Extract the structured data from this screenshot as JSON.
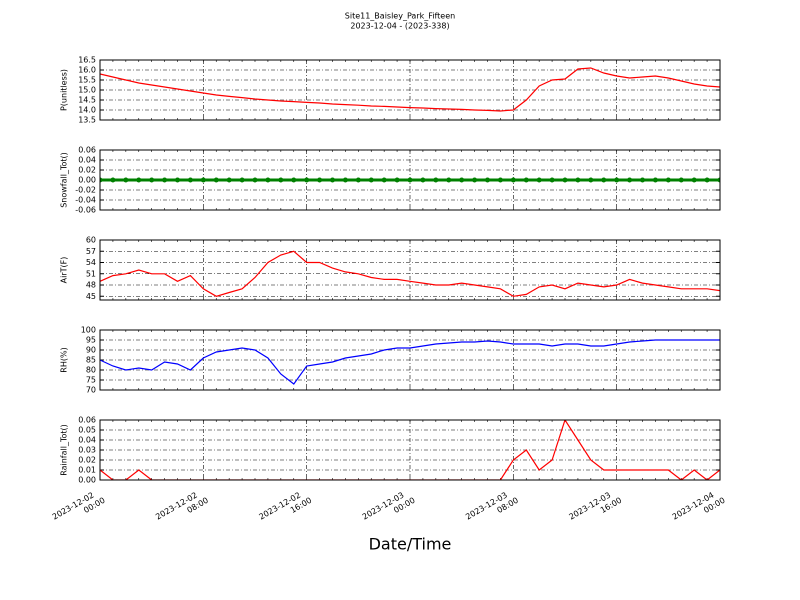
{
  "title": "Site11_Baisley_Park_Fifteen",
  "subtitle": "2023-12-04 - (2023-338)",
  "xlabel": "Date/Time",
  "chart_data": [
    {
      "type": "line",
      "ylabel": "P(unitless)",
      "color": "#ff0000",
      "grid": true,
      "xlim": [
        "2023-12-02 00:00",
        "2023-12-04 00:00"
      ],
      "xticks": [
        "2023-12-02 00:00",
        "2023-12-02 08:00",
        "2023-12-02 16:00",
        "2023-12-03 00:00",
        "2023-12-03 08:00",
        "2023-12-03 16:00",
        "2023-12-04 00:00"
      ],
      "ylim": [
        13.5,
        16.5
      ],
      "yticks": [
        13.5,
        {
          "value": 14,
          "label": "14.0"
        },
        14.5,
        {
          "value": 15,
          "label": "15.0"
        },
        15.5,
        {
          "value": 16,
          "label": "16.0"
        },
        16.5
      ],
      "x": [
        "2023-12-02 00:00",
        "2023-12-02 01:00",
        "2023-12-02 02:00",
        "2023-12-02 03:00",
        "2023-12-02 04:00",
        "2023-12-02 05:00",
        "2023-12-02 06:00",
        "2023-12-02 07:00",
        "2023-12-02 08:00",
        "2023-12-02 09:00",
        "2023-12-02 10:00",
        "2023-12-02 11:00",
        "2023-12-02 12:00",
        "2023-12-02 13:00",
        "2023-12-02 14:00",
        "2023-12-02 15:00",
        "2023-12-02 16:00",
        "2023-12-02 17:00",
        "2023-12-02 18:00",
        "2023-12-02 19:00",
        "2023-12-02 20:00",
        "2023-12-02 21:00",
        "2023-12-02 22:00",
        "2023-12-02 23:00",
        "2023-12-03 00:00",
        "2023-12-03 01:00",
        "2023-12-03 02:00",
        "2023-12-03 03:00",
        "2023-12-03 04:00",
        "2023-12-03 05:00",
        "2023-12-03 06:00",
        "2023-12-03 07:00",
        "2023-12-03 08:00",
        "2023-12-03 09:00",
        "2023-12-03 10:00",
        "2023-12-03 11:00",
        "2023-12-03 12:00",
        "2023-12-03 13:00",
        "2023-12-03 14:00",
        "2023-12-03 15:00",
        "2023-12-03 16:00",
        "2023-12-03 17:00",
        "2023-12-03 18:00",
        "2023-12-03 19:00",
        "2023-12-03 20:00",
        "2023-12-03 21:00",
        "2023-12-03 22:00",
        "2023-12-03 23:00",
        "2023-12-04 00:00"
      ],
      "values": [
        15.8,
        15.65,
        15.5,
        15.35,
        15.25,
        15.15,
        15.05,
        14.95,
        14.85,
        14.75,
        14.68,
        14.62,
        14.55,
        14.5,
        14.45,
        14.42,
        14.38,
        14.35,
        14.3,
        14.27,
        14.24,
        14.2,
        14.18,
        14.15,
        14.12,
        14.1,
        14.07,
        14.05,
        14.03,
        14.0,
        13.98,
        13.95,
        14.0,
        14.5,
        15.2,
        15.5,
        15.55,
        16.05,
        16.1,
        15.85,
        15.7,
        15.6,
        15.65,
        15.7,
        15.6,
        15.45,
        15.3,
        15.2,
        15.15
      ]
    },
    {
      "type": "line",
      "ylabel": "Snowfall_Tot()",
      "color": "#008000",
      "markers": true,
      "grid": true,
      "xlim": [
        "2023-12-02 00:00",
        "2023-12-04 00:00"
      ],
      "xticks": [
        "2023-12-02 00:00",
        "2023-12-02 08:00",
        "2023-12-02 16:00",
        "2023-12-03 00:00",
        "2023-12-03 08:00",
        "2023-12-03 16:00",
        "2023-12-04 00:00"
      ],
      "ylim": [
        -0.06,
        0.06
      ],
      "yticks": [
        {
          "value": -0.06,
          "label": "-0.06"
        },
        {
          "value": -0.04,
          "label": "-0.04"
        },
        {
          "value": -0.02,
          "label": "-0.02"
        },
        {
          "value": 0,
          "label": "0.00"
        },
        {
          "value": 0.02,
          "label": "0.02"
        },
        {
          "value": 0.04,
          "label": "0.04"
        },
        {
          "value": 0.06,
          "label": "0.06"
        }
      ],
      "x": [
        "2023-12-02 00:00",
        "2023-12-02 01:00",
        "2023-12-02 02:00",
        "2023-12-02 03:00",
        "2023-12-02 04:00",
        "2023-12-02 05:00",
        "2023-12-02 06:00",
        "2023-12-02 07:00",
        "2023-12-02 08:00",
        "2023-12-02 09:00",
        "2023-12-02 10:00",
        "2023-12-02 11:00",
        "2023-12-02 12:00",
        "2023-12-02 13:00",
        "2023-12-02 14:00",
        "2023-12-02 15:00",
        "2023-12-02 16:00",
        "2023-12-02 17:00",
        "2023-12-02 18:00",
        "2023-12-02 19:00",
        "2023-12-02 20:00",
        "2023-12-02 21:00",
        "2023-12-02 22:00",
        "2023-12-02 23:00",
        "2023-12-03 00:00",
        "2023-12-03 01:00",
        "2023-12-03 02:00",
        "2023-12-03 03:00",
        "2023-12-03 04:00",
        "2023-12-03 05:00",
        "2023-12-03 06:00",
        "2023-12-03 07:00",
        "2023-12-03 08:00",
        "2023-12-03 09:00",
        "2023-12-03 10:00",
        "2023-12-03 11:00",
        "2023-12-03 12:00",
        "2023-12-03 13:00",
        "2023-12-03 14:00",
        "2023-12-03 15:00",
        "2023-12-03 16:00",
        "2023-12-03 17:00",
        "2023-12-03 18:00",
        "2023-12-03 19:00",
        "2023-12-03 20:00",
        "2023-12-03 21:00",
        "2023-12-03 22:00",
        "2023-12-03 23:00",
        "2023-12-04 00:00"
      ],
      "values": [
        0,
        0,
        0,
        0,
        0,
        0,
        0,
        0,
        0,
        0,
        0,
        0,
        0,
        0,
        0,
        0,
        0,
        0,
        0,
        0,
        0,
        0,
        0,
        0,
        0,
        0,
        0,
        0,
        0,
        0,
        0,
        0,
        0,
        0,
        0,
        0,
        0,
        0,
        0,
        0,
        0,
        0,
        0,
        0,
        0,
        0,
        0,
        0,
        0
      ]
    },
    {
      "type": "line",
      "ylabel": "AirT(F)",
      "color": "#ff0000",
      "grid": true,
      "xlim": [
        "2023-12-02 00:00",
        "2023-12-04 00:00"
      ],
      "xticks": [
        "2023-12-02 00:00",
        "2023-12-02 08:00",
        "2023-12-02 16:00",
        "2023-12-03 00:00",
        "2023-12-03 08:00",
        "2023-12-03 16:00",
        "2023-12-04 00:00"
      ],
      "ylim": [
        44,
        60
      ],
      "yticks": [
        45,
        48,
        51,
        54,
        57,
        60
      ],
      "x": [
        "2023-12-02 00:00",
        "2023-12-02 01:00",
        "2023-12-02 02:00",
        "2023-12-02 03:00",
        "2023-12-02 04:00",
        "2023-12-02 05:00",
        "2023-12-02 06:00",
        "2023-12-02 07:00",
        "2023-12-02 08:00",
        "2023-12-02 09:00",
        "2023-12-02 10:00",
        "2023-12-02 11:00",
        "2023-12-02 12:00",
        "2023-12-02 13:00",
        "2023-12-02 14:00",
        "2023-12-02 15:00",
        "2023-12-02 16:00",
        "2023-12-02 17:00",
        "2023-12-02 18:00",
        "2023-12-02 19:00",
        "2023-12-02 20:00",
        "2023-12-02 21:00",
        "2023-12-02 22:00",
        "2023-12-02 23:00",
        "2023-12-03 00:00",
        "2023-12-03 01:00",
        "2023-12-03 02:00",
        "2023-12-03 03:00",
        "2023-12-03 04:00",
        "2023-12-03 05:00",
        "2023-12-03 06:00",
        "2023-12-03 07:00",
        "2023-12-03 08:00",
        "2023-12-03 09:00",
        "2023-12-03 10:00",
        "2023-12-03 11:00",
        "2023-12-03 12:00",
        "2023-12-03 13:00",
        "2023-12-03 14:00",
        "2023-12-03 15:00",
        "2023-12-03 16:00",
        "2023-12-03 17:00",
        "2023-12-03 18:00",
        "2023-12-03 19:00",
        "2023-12-03 20:00",
        "2023-12-03 21:00",
        "2023-12-03 22:00",
        "2023-12-03 23:00",
        "2023-12-04 00:00"
      ],
      "values": [
        49,
        50.5,
        51,
        52,
        51,
        51,
        49,
        50.5,
        47,
        45,
        46,
        47,
        50,
        54,
        56,
        57,
        54,
        54,
        52.5,
        51.5,
        51,
        50,
        49.5,
        49.5,
        49,
        48.5,
        48,
        48,
        48.5,
        48,
        47.5,
        47,
        45,
        45.5,
        47.5,
        48,
        47,
        48.5,
        48,
        47.5,
        48,
        49.5,
        48.5,
        48,
        47.5,
        47,
        47,
        47,
        46.5
      ]
    },
    {
      "type": "line",
      "ylabel": "RH(%)",
      "color": "#0000ff",
      "grid": true,
      "xlim": [
        "2023-12-02 00:00",
        "2023-12-04 00:00"
      ],
      "xticks": [
        "2023-12-02 00:00",
        "2023-12-02 08:00",
        "2023-12-02 16:00",
        "2023-12-03 00:00",
        "2023-12-03 08:00",
        "2023-12-03 16:00",
        "2023-12-04 00:00"
      ],
      "ylim": [
        70,
        100
      ],
      "yticks": [
        70,
        75,
        80,
        85,
        90,
        95,
        100
      ],
      "x": [
        "2023-12-02 00:00",
        "2023-12-02 01:00",
        "2023-12-02 02:00",
        "2023-12-02 03:00",
        "2023-12-02 04:00",
        "2023-12-02 05:00",
        "2023-12-02 06:00",
        "2023-12-02 07:00",
        "2023-12-02 08:00",
        "2023-12-02 09:00",
        "2023-12-02 10:00",
        "2023-12-02 11:00",
        "2023-12-02 12:00",
        "2023-12-02 13:00",
        "2023-12-02 14:00",
        "2023-12-02 15:00",
        "2023-12-02 16:00",
        "2023-12-02 17:00",
        "2023-12-02 18:00",
        "2023-12-02 19:00",
        "2023-12-02 20:00",
        "2023-12-02 21:00",
        "2023-12-02 22:00",
        "2023-12-02 23:00",
        "2023-12-03 00:00",
        "2023-12-03 01:00",
        "2023-12-03 02:00",
        "2023-12-03 03:00",
        "2023-12-03 04:00",
        "2023-12-03 05:00",
        "2023-12-03 06:00",
        "2023-12-03 07:00",
        "2023-12-03 08:00",
        "2023-12-03 09:00",
        "2023-12-03 10:00",
        "2023-12-03 11:00",
        "2023-12-03 12:00",
        "2023-12-03 13:00",
        "2023-12-03 14:00",
        "2023-12-03 15:00",
        "2023-12-03 16:00",
        "2023-12-03 17:00",
        "2023-12-03 18:00",
        "2023-12-03 19:00",
        "2023-12-03 20:00",
        "2023-12-03 21:00",
        "2023-12-03 22:00",
        "2023-12-03 23:00",
        "2023-12-04 00:00"
      ],
      "values": [
        85,
        82,
        80,
        81,
        80,
        84,
        83,
        80,
        86,
        89,
        90,
        91,
        90,
        86,
        78,
        73,
        82,
        83,
        84,
        86,
        87,
        88,
        90,
        91,
        91,
        92,
        93,
        93.5,
        94,
        94,
        94.5,
        94,
        93,
        93,
        93,
        92,
        93,
        93,
        92,
        92,
        93,
        94,
        94.5,
        95,
        95,
        95,
        95,
        95,
        95
      ]
    },
    {
      "type": "line",
      "ylabel": "Rainfall_Tot()",
      "color": "#ff0000",
      "grid": true,
      "xtick_labels": true,
      "xlim": [
        "2023-12-02 00:00",
        "2023-12-04 00:00"
      ],
      "xticks": [
        "2023-12-02 00:00",
        "2023-12-02 08:00",
        "2023-12-02 16:00",
        "2023-12-03 00:00",
        "2023-12-03 08:00",
        "2023-12-03 16:00",
        "2023-12-04 00:00"
      ],
      "ylim": [
        0,
        0.06
      ],
      "yticks": [
        {
          "value": 0,
          "label": "0.00"
        },
        0.01,
        0.02,
        0.03,
        0.04,
        0.05,
        0.06
      ],
      "x": [
        "2023-12-02 00:00",
        "2023-12-02 01:00",
        "2023-12-02 02:00",
        "2023-12-02 03:00",
        "2023-12-02 04:00",
        "2023-12-02 05:00",
        "2023-12-02 06:00",
        "2023-12-02 07:00",
        "2023-12-02 08:00",
        "2023-12-02 09:00",
        "2023-12-02 10:00",
        "2023-12-02 11:00",
        "2023-12-02 12:00",
        "2023-12-02 13:00",
        "2023-12-02 14:00",
        "2023-12-02 15:00",
        "2023-12-02 16:00",
        "2023-12-02 17:00",
        "2023-12-02 18:00",
        "2023-12-02 19:00",
        "2023-12-02 20:00",
        "2023-12-02 21:00",
        "2023-12-02 22:00",
        "2023-12-02 23:00",
        "2023-12-03 00:00",
        "2023-12-03 01:00",
        "2023-12-03 02:00",
        "2023-12-03 03:00",
        "2023-12-03 04:00",
        "2023-12-03 05:00",
        "2023-12-03 06:00",
        "2023-12-03 07:00",
        "2023-12-03 08:00",
        "2023-12-03 09:00",
        "2023-12-03 10:00",
        "2023-12-03 11:00",
        "2023-12-03 12:00",
        "2023-12-03 13:00",
        "2023-12-03 14:00",
        "2023-12-03 15:00",
        "2023-12-03 16:00",
        "2023-12-03 17:00",
        "2023-12-03 18:00",
        "2023-12-03 19:00",
        "2023-12-03 20:00",
        "2023-12-03 21:00",
        "2023-12-03 22:00",
        "2023-12-03 23:00",
        "2023-12-04 00:00"
      ],
      "values": [
        0.01,
        0,
        0,
        0.01,
        0,
        0,
        0,
        0,
        0,
        0,
        0,
        0,
        0,
        0,
        0,
        0,
        0,
        0,
        0,
        0,
        0,
        0,
        0,
        0,
        0,
        0,
        0,
        0,
        0,
        0,
        0,
        0,
        0.02,
        0.03,
        0.01,
        0.02,
        0.06,
        0.04,
        0.02,
        0.01,
        0.01,
        0.01,
        0.01,
        0.01,
        0.01,
        0,
        0.01,
        0,
        0.01
      ]
    }
  ]
}
